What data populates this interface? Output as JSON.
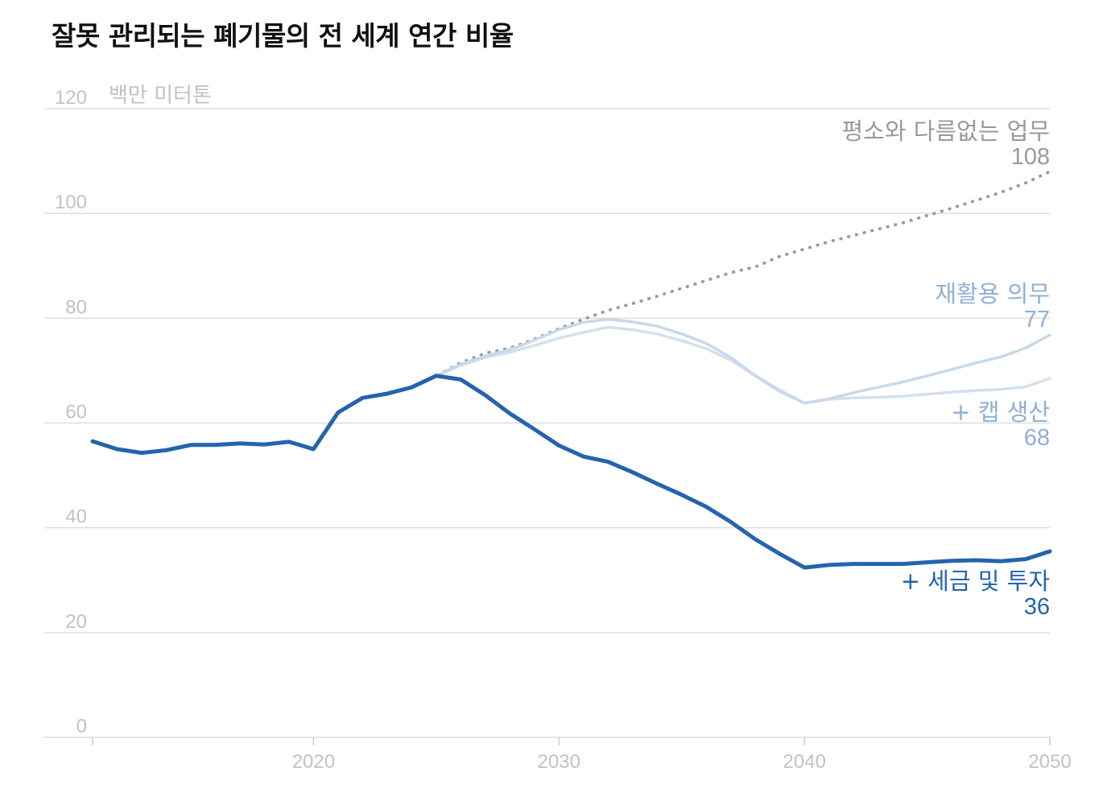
{
  "chart_data": {
    "type": "line",
    "title": "잘못 관리되는 폐기물의 전 세계 연간 비율",
    "ylabel": "백만 미터톤",
    "xlabel": "",
    "xlim": [
      2011,
      2050
    ],
    "ylim": [
      0,
      120
    ],
    "grid": true,
    "x_ticks": [
      "2020",
      "2030",
      "2040",
      "2050"
    ],
    "y_ticks": [
      "0",
      "20",
      "40",
      "60",
      "80",
      "100",
      "120"
    ],
    "colors": {
      "grid": "#dddddd",
      "tick_text": "#c2c2c2",
      "business_as_usual": "#9a9a9a",
      "recycling": "#c8d8ea",
      "cap": "#d3e0ee",
      "tax": "#2464ad",
      "recycling_label": "#8fb0d6",
      "tax_label": "#2464ad"
    },
    "series": [
      {
        "key": "historical",
        "style": "solid-thick",
        "x": [
          2011,
          2012,
          2013,
          2014,
          2015,
          2016,
          2017,
          2018,
          2019,
          2020,
          2021,
          2022,
          2023,
          2024,
          2025
        ],
        "y": [
          56.5,
          55.0,
          54.3,
          54.8,
          55.8,
          55.8,
          56.1,
          55.9,
          56.4,
          55.0,
          62.0,
          64.8,
          65.6,
          66.8,
          69.0
        ]
      },
      {
        "key": "business_as_usual",
        "name": "평소와 다름없는 업무",
        "end_value": "108",
        "style": "dotted",
        "x": [
          2025,
          2026,
          2027,
          2028,
          2029,
          2030,
          2031,
          2032,
          2033,
          2034,
          2035,
          2036,
          2037,
          2038,
          2039,
          2040,
          2041,
          2042,
          2043,
          2044,
          2045,
          2046,
          2047,
          2048,
          2049,
          2050
        ],
        "y": [
          69.0,
          71.5,
          73.3,
          74.3,
          76.0,
          78.0,
          79.8,
          81.5,
          82.8,
          84.2,
          85.7,
          87.2,
          88.7,
          89.8,
          91.8,
          93.2,
          94.6,
          95.8,
          97.0,
          98.2,
          99.6,
          101.0,
          102.5,
          104.0,
          105.8,
          108.0
        ]
      },
      {
        "key": "recycling",
        "name": "재활용 의무",
        "end_value": "77",
        "style": "solid-thin",
        "x": [
          2025,
          2026,
          2027,
          2028,
          2029,
          2030,
          2031,
          2032,
          2033,
          2034,
          2035,
          2036,
          2037,
          2038,
          2039,
          2040,
          2041,
          2042,
          2043,
          2044,
          2045,
          2046,
          2047,
          2048,
          2049,
          2050
        ],
        "y": [
          69.0,
          71.2,
          72.8,
          74.0,
          75.8,
          77.8,
          79.2,
          79.8,
          79.3,
          78.5,
          77.0,
          75.2,
          72.5,
          69.0,
          66.0,
          63.8,
          64.6,
          65.8,
          66.8,
          67.8,
          69.0,
          70.2,
          71.5,
          72.6,
          74.3,
          76.8
        ]
      },
      {
        "key": "cap",
        "name": "+ 캡 생산",
        "end_value": "68",
        "style": "solid-thin",
        "x": [
          2025,
          2026,
          2027,
          2028,
          2029,
          2030,
          2031,
          2032,
          2033,
          2034,
          2035,
          2036,
          2037,
          2038,
          2039,
          2040,
          2041,
          2042,
          2043,
          2044,
          2045,
          2046,
          2047,
          2048,
          2049,
          2050
        ],
        "y": [
          69.0,
          71.0,
          72.5,
          73.5,
          74.8,
          76.2,
          77.3,
          78.3,
          77.8,
          77.0,
          75.7,
          74.2,
          72.0,
          69.0,
          66.3,
          63.8,
          64.5,
          64.8,
          64.9,
          65.1,
          65.5,
          65.9,
          66.2,
          66.4,
          66.9,
          68.5
        ]
      },
      {
        "key": "tax",
        "name": "+ 세금 및 투자",
        "end_value": "36",
        "style": "solid-thick",
        "x": [
          2025,
          2026,
          2027,
          2028,
          2029,
          2030,
          2031,
          2032,
          2033,
          2034,
          2035,
          2036,
          2037,
          2038,
          2039,
          2040,
          2041,
          2042,
          2043,
          2044,
          2045,
          2046,
          2047,
          2048,
          2049,
          2050
        ],
        "y": [
          69.0,
          68.3,
          65.3,
          61.8,
          58.8,
          55.7,
          53.6,
          52.6,
          50.6,
          48.4,
          46.3,
          44.0,
          41.1,
          37.8,
          35.0,
          32.4,
          32.9,
          33.1,
          33.1,
          33.1,
          33.4,
          33.7,
          33.8,
          33.6,
          34.0,
          35.5
        ]
      }
    ]
  }
}
